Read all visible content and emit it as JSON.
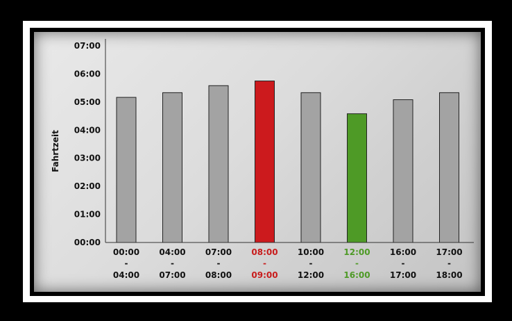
{
  "chart_data": {
    "type": "bar",
    "title": "",
    "xlabel": "",
    "ylabel": "Fahrtzeit",
    "ylim": [
      "00:00",
      "07:00"
    ],
    "yticks": [
      "00:00",
      "01:00",
      "02:00",
      "03:00",
      "04:00",
      "05:00",
      "06:00",
      "07:00"
    ],
    "categories": [
      {
        "start": "00:00",
        "sep": "-",
        "end": "04:00"
      },
      {
        "start": "04:00",
        "sep": "-",
        "end": "07:00"
      },
      {
        "start": "07:00",
        "sep": "-",
        "end": "08:00"
      },
      {
        "start": "08:00",
        "sep": "-",
        "end": "09:00"
      },
      {
        "start": "10:00",
        "sep": "-",
        "end": "12:00"
      },
      {
        "start": "12:00",
        "sep": "-",
        "end": "16:00"
      },
      {
        "start": "16:00",
        "sep": "-",
        "end": "17:00"
      },
      {
        "start": "17:00",
        "sep": "-",
        "end": "18:00"
      }
    ],
    "values": [
      "05:10",
      "05:20",
      "05:35",
      "05:45",
      "05:20",
      "04:35",
      "05:05",
      "05:20"
    ],
    "bar_colors": [
      "#a3a3a3",
      "#a3a3a3",
      "#a3a3a3",
      "#cc1a1d",
      "#a3a3a3",
      "#4e9a26",
      "#a3a3a3",
      "#a3a3a3"
    ],
    "label_colors": [
      "#111111",
      "#111111",
      "#111111",
      "#c81c1c",
      "#111111",
      "#4e9a26",
      "#111111",
      "#111111"
    ],
    "grid": false
  }
}
